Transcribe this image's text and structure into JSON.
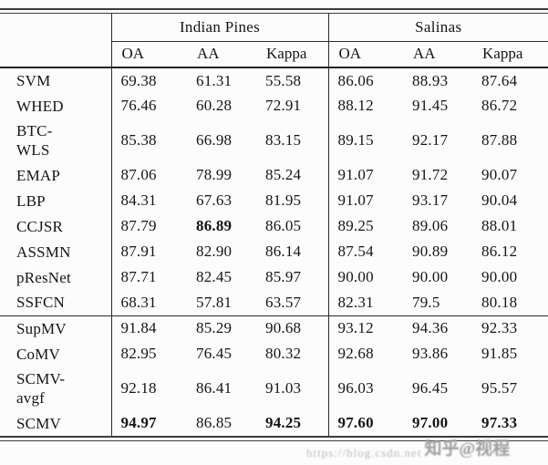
{
  "table": {
    "groups": [
      {
        "label": "Indian Pines"
      },
      {
        "label": "Salinas"
      }
    ],
    "subheaders": [
      "OA",
      "AA",
      "Kappa",
      "OA",
      "AA",
      "Kappa"
    ],
    "rows": [
      {
        "method": "SVM",
        "values": [
          "69.38",
          "61.31",
          "55.58",
          "86.06",
          "88.93",
          "87.64"
        ],
        "bold": []
      },
      {
        "method": "WHED",
        "values": [
          "76.46",
          "60.28",
          "72.91",
          "88.12",
          "91.45",
          "86.72"
        ],
        "bold": []
      },
      {
        "method": "BTC-\nWLS",
        "values": [
          "85.38",
          "66.98",
          "83.15",
          "89.15",
          "92.17",
          "87.88"
        ],
        "bold": []
      },
      {
        "method": "EMAP",
        "values": [
          "87.06",
          "78.99",
          "85.24",
          "91.07",
          "91.72",
          "90.07"
        ],
        "bold": []
      },
      {
        "method": "LBP",
        "values": [
          "84.31",
          "67.63",
          "81.95",
          "91.07",
          "93.17",
          "90.04"
        ],
        "bold": []
      },
      {
        "method": "CCJSR",
        "values": [
          "87.79",
          "86.89",
          "86.05",
          "89.25",
          "89.06",
          "88.01"
        ],
        "bold": [
          1
        ]
      },
      {
        "method": "ASSMN",
        "values": [
          "87.91",
          "82.90",
          "86.14",
          "87.54",
          "90.89",
          "86.12"
        ],
        "bold": []
      },
      {
        "method": "pResNet",
        "values": [
          "87.71",
          "82.45",
          "85.97",
          "90.00",
          "90.00",
          "90.00"
        ],
        "bold": []
      },
      {
        "method": "SSFCN",
        "values": [
          "68.31",
          "57.81",
          "63.57",
          "82.31",
          "79.5",
          "80.18"
        ],
        "bold": []
      },
      {
        "method": "SupMV",
        "values": [
          "91.84",
          "85.29",
          "90.68",
          "93.12",
          "94.36",
          "92.33"
        ],
        "bold": [],
        "rule_above": true
      },
      {
        "method": "CoMV",
        "values": [
          "82.95",
          "76.45",
          "80.32",
          "92.68",
          "93.86",
          "91.85"
        ],
        "bold": []
      },
      {
        "method": "SCMV-\navgf",
        "values": [
          "92.18",
          "86.41",
          "91.03",
          "96.03",
          "96.45",
          "95.57"
        ],
        "bold": []
      },
      {
        "method": "SCMV",
        "values": [
          "94.97",
          "86.85",
          "94.25",
          "97.60",
          "97.00",
          "97.33"
        ],
        "bold": [
          0,
          2,
          3,
          4,
          5
        ]
      }
    ]
  },
  "watermark": {
    "url_text": "https://blog.csdn.net",
    "handle_text": "知乎@视程"
  }
}
